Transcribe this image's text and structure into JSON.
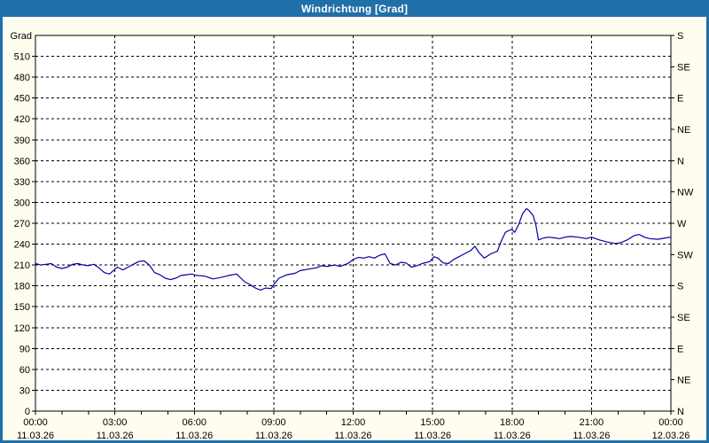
{
  "window": {
    "title": "Windrichtung [Grad]"
  },
  "colors": {
    "accent_blue": "#1f6fa8",
    "background_cream": "#fffdf0",
    "plot_background": "#ffffff",
    "grid_black": "#000000",
    "line_navy": "#0000a0",
    "title_text": "#ffffff"
  },
  "chart_data": {
    "type": "line",
    "title": "Windrichtung [Grad]",
    "y_unit_label": "Grad",
    "ylim": [
      0,
      540
    ],
    "xlim_hours": [
      0,
      24
    ],
    "grid": {
      "horizontal_step_deg": 30,
      "vertical_step_hours": 3,
      "style": "dashed"
    },
    "legend_position": "none",
    "y_left_ticks": [
      0,
      30,
      60,
      90,
      120,
      150,
      180,
      210,
      240,
      270,
      300,
      330,
      360,
      390,
      420,
      450,
      480,
      510
    ],
    "y_right_ticks": [
      {
        "deg": 540,
        "label": "S"
      },
      {
        "deg": 495,
        "label": "SE"
      },
      {
        "deg": 450,
        "label": "E"
      },
      {
        "deg": 405,
        "label": "NE"
      },
      {
        "deg": 360,
        "label": "N"
      },
      {
        "deg": 315,
        "label": "NW"
      },
      {
        "deg": 270,
        "label": "W"
      },
      {
        "deg": 225,
        "label": "SW"
      },
      {
        "deg": 180,
        "label": "S"
      },
      {
        "deg": 135,
        "label": "SE"
      },
      {
        "deg": 90,
        "label": "E"
      },
      {
        "deg": 45,
        "label": "NE"
      },
      {
        "deg": 0,
        "label": "N"
      }
    ],
    "x_ticks": [
      {
        "hour": 0,
        "time": "00:00",
        "date": "11.03.26"
      },
      {
        "hour": 3,
        "time": "03:00",
        "date": "11.03.26"
      },
      {
        "hour": 6,
        "time": "06:00",
        "date": "11.03.26"
      },
      {
        "hour": 9,
        "time": "09:00",
        "date": "11.03.26"
      },
      {
        "hour": 12,
        "time": "12:00",
        "date": "11.03.26"
      },
      {
        "hour": 15,
        "time": "15:00",
        "date": "11.03.26"
      },
      {
        "hour": 18,
        "time": "18:00",
        "date": "11.03.26"
      },
      {
        "hour": 21,
        "time": "21:00",
        "date": "11.03.26"
      },
      {
        "hour": 24,
        "time": "00:00",
        "date": "12.03.26"
      }
    ],
    "x_minor_tick_hours": 1,
    "series": [
      {
        "name": "Windrichtung",
        "color": "#0000a0",
        "points": [
          [
            0.0,
            212
          ],
          [
            0.2,
            210
          ],
          [
            0.4,
            211
          ],
          [
            0.6,
            212
          ],
          [
            0.8,
            207
          ],
          [
            1.0,
            205
          ],
          [
            1.2,
            207
          ],
          [
            1.4,
            211
          ],
          [
            1.6,
            212
          ],
          [
            1.8,
            210
          ],
          [
            2.0,
            209
          ],
          [
            2.2,
            211
          ],
          [
            2.4,
            206
          ],
          [
            2.6,
            199
          ],
          [
            2.8,
            197
          ],
          [
            3.0,
            204
          ],
          [
            3.1,
            207
          ],
          [
            3.3,
            203
          ],
          [
            3.5,
            207
          ],
          [
            3.7,
            211
          ],
          [
            3.9,
            215
          ],
          [
            4.1,
            216
          ],
          [
            4.3,
            210
          ],
          [
            4.5,
            199
          ],
          [
            4.7,
            196
          ],
          [
            4.9,
            191
          ],
          [
            5.1,
            189
          ],
          [
            5.3,
            191
          ],
          [
            5.5,
            195
          ],
          [
            5.7,
            196
          ],
          [
            5.9,
            197
          ],
          [
            6.1,
            195
          ],
          [
            6.4,
            194
          ],
          [
            6.7,
            190
          ],
          [
            7.0,
            192
          ],
          [
            7.3,
            195
          ],
          [
            7.6,
            197
          ],
          [
            7.9,
            186
          ],
          [
            8.1,
            182
          ],
          [
            8.3,
            177
          ],
          [
            8.5,
            174
          ],
          [
            8.7,
            177
          ],
          [
            8.9,
            176
          ],
          [
            9.0,
            182
          ],
          [
            9.2,
            191
          ],
          [
            9.5,
            196
          ],
          [
            9.8,
            198
          ],
          [
            10.0,
            202
          ],
          [
            10.3,
            204
          ],
          [
            10.6,
            206
          ],
          [
            10.8,
            209
          ],
          [
            11.0,
            208
          ],
          [
            11.3,
            210
          ],
          [
            11.5,
            208
          ],
          [
            11.8,
            212
          ],
          [
            12.0,
            218
          ],
          [
            12.2,
            221
          ],
          [
            12.4,
            220
          ],
          [
            12.6,
            222
          ],
          [
            12.8,
            220
          ],
          [
            13.0,
            224
          ],
          [
            13.2,
            226
          ],
          [
            13.4,
            212
          ],
          [
            13.6,
            210
          ],
          [
            13.8,
            214
          ],
          [
            14.0,
            213
          ],
          [
            14.2,
            207
          ],
          [
            14.4,
            209
          ],
          [
            14.6,
            212
          ],
          [
            14.9,
            215
          ],
          [
            15.05,
            222
          ],
          [
            15.2,
            220
          ],
          [
            15.4,
            213
          ],
          [
            15.6,
            212
          ],
          [
            15.8,
            218
          ],
          [
            16.0,
            222
          ],
          [
            16.2,
            226
          ],
          [
            16.45,
            231
          ],
          [
            16.6,
            237
          ],
          [
            16.75,
            228
          ],
          [
            16.95,
            220
          ],
          [
            17.2,
            226
          ],
          [
            17.45,
            230
          ],
          [
            17.6,
            245
          ],
          [
            17.75,
            257
          ],
          [
            17.9,
            260
          ],
          [
            18.0,
            261
          ],
          [
            18.1,
            257
          ],
          [
            18.25,
            268
          ],
          [
            18.4,
            284
          ],
          [
            18.55,
            291
          ],
          [
            18.65,
            288
          ],
          [
            18.8,
            281
          ],
          [
            18.9,
            268
          ],
          [
            19.0,
            246
          ],
          [
            19.2,
            249
          ],
          [
            19.4,
            250
          ],
          [
            19.6,
            249
          ],
          [
            19.8,
            248
          ],
          [
            20.0,
            250
          ],
          [
            20.2,
            251
          ],
          [
            20.5,
            250
          ],
          [
            20.8,
            248
          ],
          [
            21.0,
            250
          ],
          [
            21.3,
            246
          ],
          [
            21.6,
            243
          ],
          [
            21.9,
            241
          ],
          [
            22.1,
            242
          ],
          [
            22.35,
            246
          ],
          [
            22.6,
            252
          ],
          [
            22.8,
            254
          ],
          [
            23.0,
            250
          ],
          [
            23.2,
            248
          ],
          [
            23.5,
            247
          ],
          [
            23.8,
            249
          ],
          [
            24.0,
            250
          ]
        ]
      }
    ]
  }
}
